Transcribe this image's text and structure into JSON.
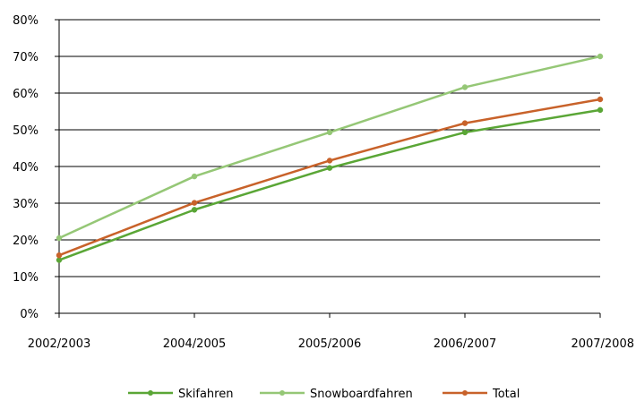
{
  "chart_data": {
    "type": "line",
    "categories": [
      "2002/2003",
      "2004/2005",
      "2005/2006",
      "2006/2007",
      "2007/2008"
    ],
    "ylim": [
      0,
      80
    ],
    "ytick_values": [
      0,
      10,
      20,
      30,
      40,
      50,
      60,
      70,
      80
    ],
    "ytick_labels": [
      "0%",
      "10%",
      "20%",
      "30%",
      "40%",
      "50%",
      "60%",
      "70%",
      "80%"
    ],
    "grid": "horizontal",
    "legend_position": "bottom",
    "series": [
      {
        "name": "Skifahren",
        "color": "#5aa636",
        "values": [
          14.5,
          28.2,
          39.6,
          49.3,
          55.4
        ]
      },
      {
        "name": "Snowboardfahren",
        "color": "#95c776",
        "values": [
          20.5,
          37.3,
          49.3,
          61.6,
          70.0
        ]
      },
      {
        "name": "Total",
        "color": "#c8622a",
        "values": [
          15.8,
          30.1,
          41.6,
          51.8,
          58.3
        ]
      }
    ]
  }
}
